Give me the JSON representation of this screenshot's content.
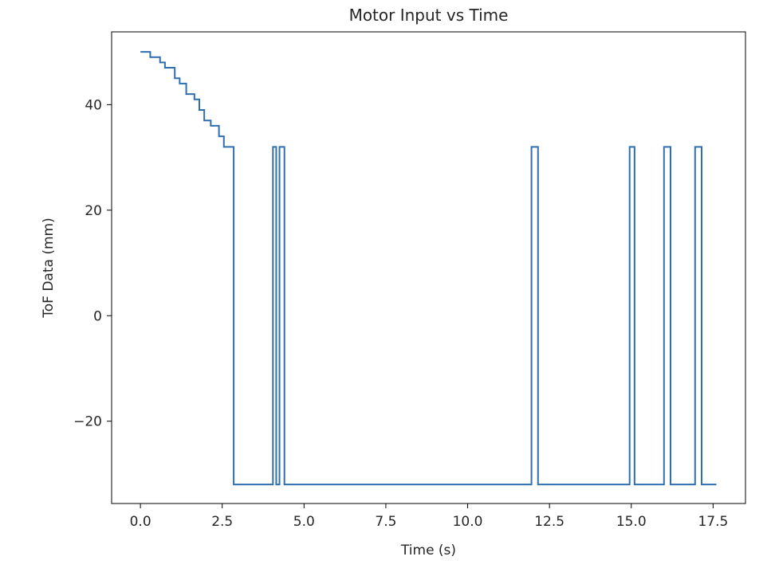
{
  "chart_data": {
    "type": "line",
    "title": "Motor Input vs Time",
    "xlabel": "Time (s)",
    "ylabel": "ToF Data (mm)",
    "xlim": [
      -0.88,
      18.49
    ],
    "ylim": [
      -35.6,
      53.8
    ],
    "x_ticks": [
      0,
      2.5,
      5,
      7.5,
      10,
      12.5,
      15,
      17.5
    ],
    "x_tick_labels": [
      "0.0",
      "2.5",
      "5.0",
      "7.5",
      "10.0",
      "12.5",
      "15.0",
      "17.5"
    ],
    "y_ticks": [
      -20,
      0,
      20,
      40
    ],
    "y_tick_labels": [
      "−20",
      "0",
      "20",
      "40"
    ],
    "grid": false,
    "legend": "none",
    "series": [
      {
        "color": "#2f6fb0",
        "step": "post",
        "points": [
          [
            0.0,
            50
          ],
          [
            0.3,
            49
          ],
          [
            0.6,
            48
          ],
          [
            0.75,
            47
          ],
          [
            1.05,
            45
          ],
          [
            1.2,
            44
          ],
          [
            1.4,
            42
          ],
          [
            1.65,
            41
          ],
          [
            1.8,
            39
          ],
          [
            1.95,
            37
          ],
          [
            2.15,
            36
          ],
          [
            2.4,
            34
          ],
          [
            2.55,
            32
          ],
          [
            2.85,
            -32
          ],
          [
            4.05,
            32
          ],
          [
            4.15,
            -32
          ],
          [
            4.25,
            32
          ],
          [
            4.4,
            -32
          ],
          [
            11.95,
            32
          ],
          [
            12.15,
            -32
          ],
          [
            14.95,
            32
          ],
          [
            15.1,
            -32
          ],
          [
            16.0,
            32
          ],
          [
            16.2,
            -32
          ],
          [
            16.95,
            32
          ],
          [
            17.15,
            -32
          ],
          [
            17.6,
            -32
          ]
        ]
      }
    ]
  }
}
